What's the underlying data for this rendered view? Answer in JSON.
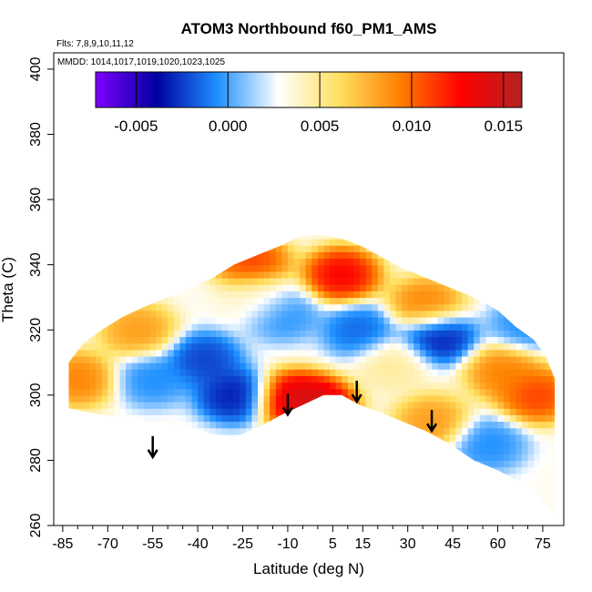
{
  "chart_data": {
    "type": "heatmap",
    "title": "ATOM3 Northbound f60_PM1_AMS",
    "annotations": {
      "flights": "Flts: 7,8,9,10,11,12",
      "dates": "MMDD: 1014,1017,1019,1020,1023,1025"
    },
    "xlabel": "Latitude (deg N)",
    "ylabel": "Theta (C)",
    "xlim": [
      -88,
      82
    ],
    "ylim": [
      260,
      405
    ],
    "x_ticks": [
      -85,
      -70,
      -55,
      -40,
      -25,
      -10,
      5,
      15,
      30,
      45,
      60,
      75
    ],
    "y_ticks": [
      260,
      280,
      300,
      320,
      340,
      360,
      380,
      400
    ],
    "colorbar": {
      "range": [
        -0.0072,
        0.016
      ],
      "ticks": [
        "-0.005",
        "0.000",
        "0.005",
        "0.010",
        "0.015"
      ],
      "tick_values": [
        -0.005,
        0.0,
        0.005,
        0.01,
        0.015
      ],
      "colors": [
        "#7f00ff",
        "#0000a0",
        "#1e90ff",
        "#ffffff",
        "#ffe060",
        "#ff8000",
        "#ff0000",
        "#b22222"
      ]
    },
    "arrows": [
      {
        "lat": -55,
        "theta": 281
      },
      {
        "lat": -10,
        "theta": 294
      },
      {
        "lat": 13,
        "theta": 298
      },
      {
        "lat": 38,
        "theta": 289
      }
    ],
    "envelope": {
      "lat": [
        -83,
        -78,
        -72,
        -65,
        -58,
        -50,
        -42,
        -35,
        -28,
        -20,
        -12,
        -5,
        2,
        8,
        14,
        20,
        28,
        36,
        44,
        52,
        60,
        66,
        72,
        76,
        79
      ],
      "theta_top": [
        310,
        316,
        320,
        324,
        327,
        330,
        333,
        336,
        340,
        343,
        346,
        349,
        349,
        348,
        346,
        343,
        339,
        336,
        333,
        330,
        326,
        321,
        317,
        312,
        305
      ],
      "theta_bottom": [
        296,
        295,
        294,
        293,
        292,
        291,
        290,
        288,
        287,
        290,
        294,
        297,
        300,
        300,
        297,
        295,
        292,
        289,
        285,
        280,
        277,
        274,
        272,
        266,
        264
      ]
    },
    "features": [
      {
        "lat": -22,
        "theta": 341,
        "value": 0.012
      },
      {
        "lat": 8,
        "theta": 337,
        "value": 0.014
      },
      {
        "lat": -8,
        "theta": 299,
        "value": 0.015
      },
      {
        "lat": 0,
        "theta": 297,
        "value": 0.016
      },
      {
        "lat": 73,
        "theta": 300,
        "value": 0.012
      },
      {
        "lat": -80,
        "theta": 305,
        "value": 0.01
      },
      {
        "lat": -60,
        "theta": 320,
        "value": 0.009
      },
      {
        "lat": 36,
        "theta": 328,
        "value": 0.01
      },
      {
        "lat": 38,
        "theta": 292,
        "value": 0.009
      },
      {
        "lat": 62,
        "theta": 307,
        "value": 0.01
      },
      {
        "lat": -28,
        "theta": 300,
        "value": -0.004
      },
      {
        "lat": -38,
        "theta": 311,
        "value": -0.003
      },
      {
        "lat": 40,
        "theta": 318,
        "value": -0.004
      },
      {
        "lat": 14,
        "theta": 320,
        "value": -0.002
      },
      {
        "lat": -12,
        "theta": 325,
        "value": -0.001
      },
      {
        "lat": 70,
        "theta": 322,
        "value": -0.001
      },
      {
        "lat": -55,
        "theta": 305,
        "value": -0.001
      },
      {
        "lat": 57,
        "theta": 285,
        "value": -0.001
      },
      {
        "lat": -20,
        "theta": 330,
        "value": 0.004
      },
      {
        "lat": 25,
        "theta": 310,
        "value": 0.005
      }
    ]
  }
}
